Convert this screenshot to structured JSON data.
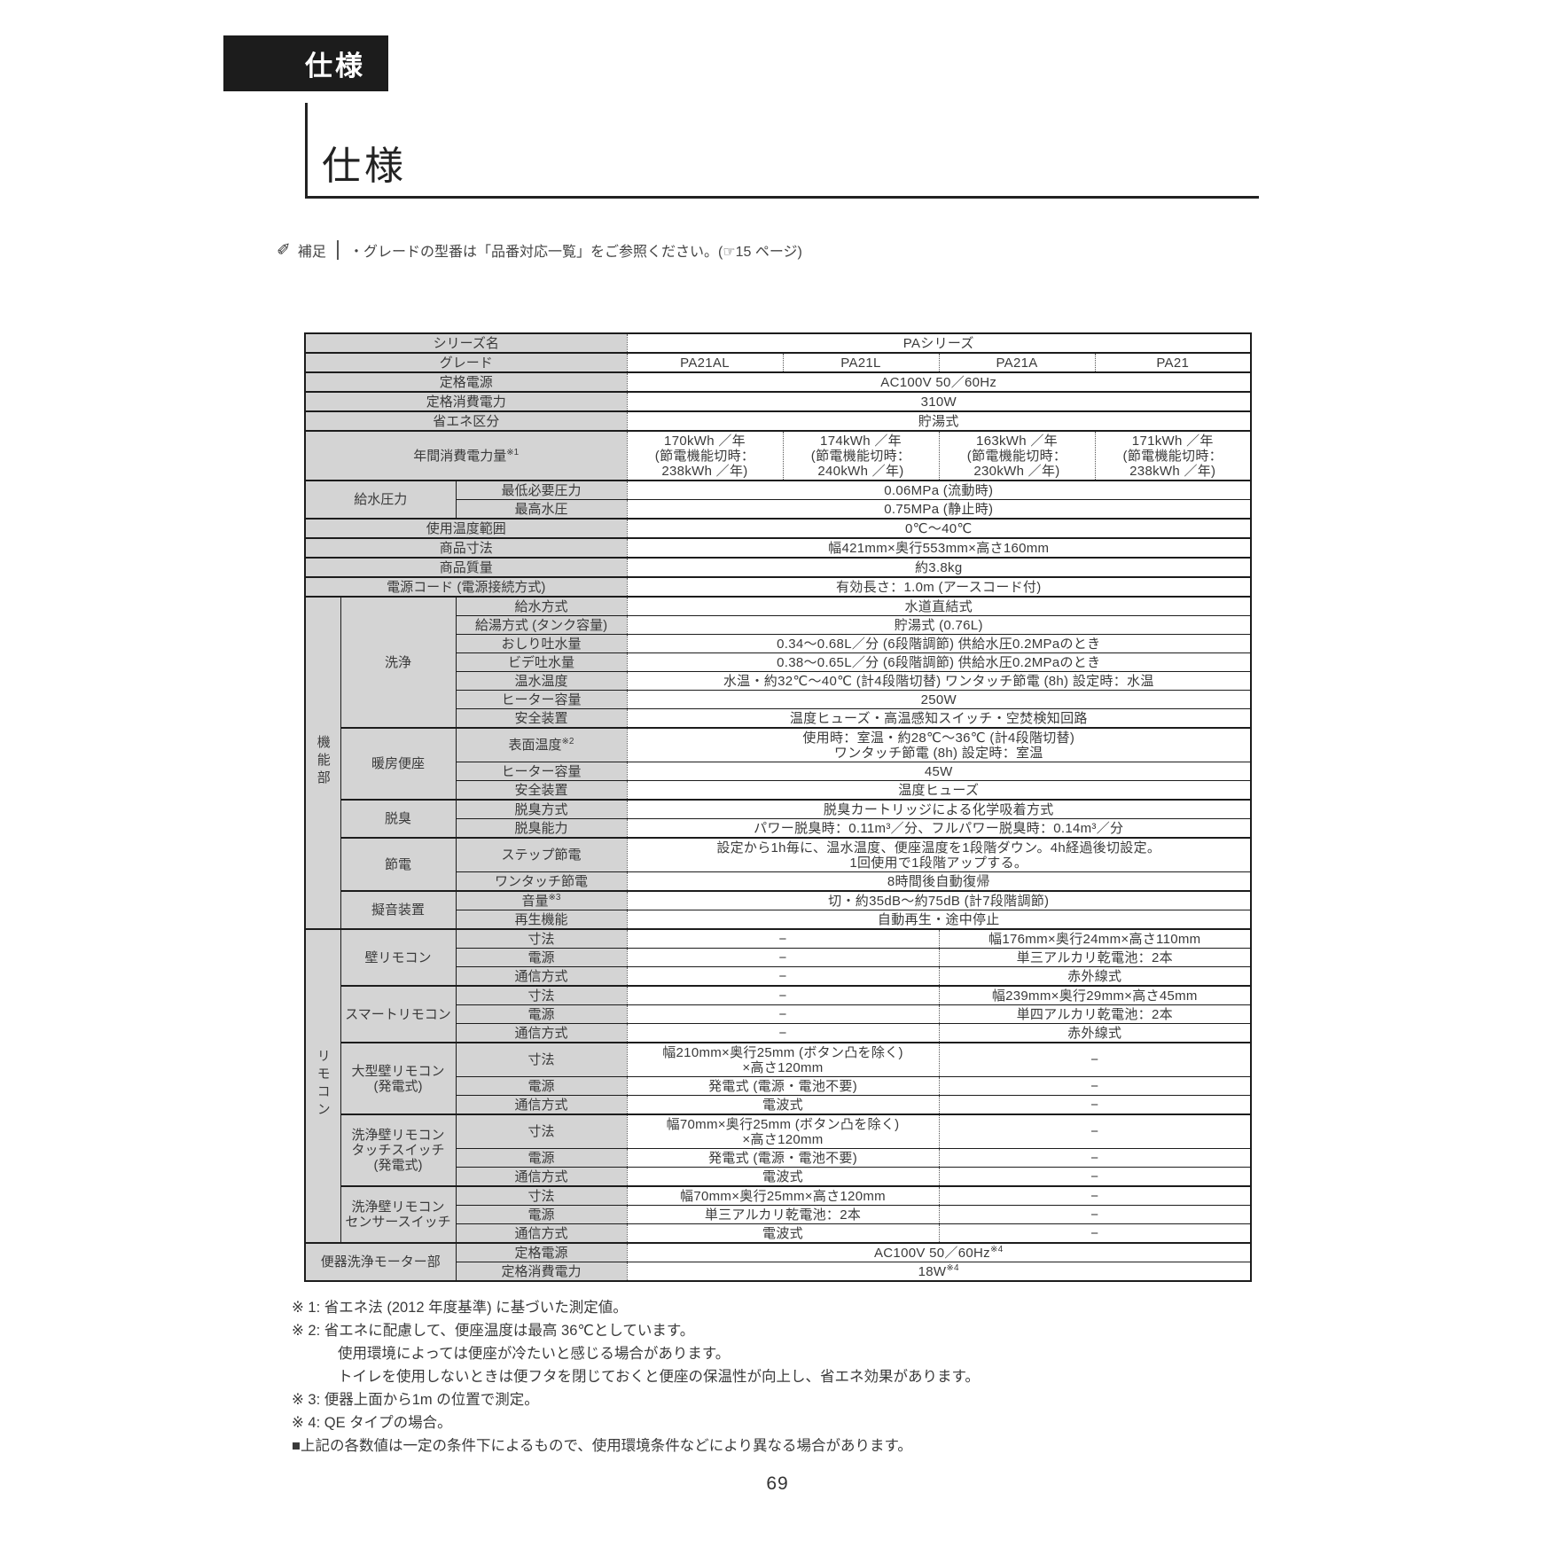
{
  "header": {
    "tab_label": "仕様",
    "section_title": "仕様"
  },
  "note": {
    "icon": "pencil-icon",
    "label": "補足",
    "text": "・グレードの型番は「品番対応一覧」をご参照ください。(☞15 ページ)"
  },
  "colors": {
    "label_bg": "#d4d4d4",
    "border": "#1c1c1c",
    "tab_bg": "#1c1c1c",
    "tab_text": "#ffffff",
    "text": "#3a3a3a"
  },
  "spec_table": {
    "series_name": "PAシリーズ",
    "grades": [
      "PA21AL",
      "PA21L",
      "PA21A",
      "PA21"
    ],
    "rows": [
      {
        "thick": true,
        "cells": [
          {
            "t": "シリーズ名",
            "k": "lbl",
            "c": 3
          },
          {
            "t": "PAシリーズ",
            "k": "val",
            "c": 4
          }
        ]
      },
      {
        "thick": true,
        "cells": [
          {
            "t": "グレード",
            "k": "lbl",
            "c": 3
          },
          {
            "t": "PA21AL",
            "k": "val"
          },
          {
            "t": "PA21L",
            "k": "val"
          },
          {
            "t": "PA21A",
            "k": "val"
          },
          {
            "t": "PA21",
            "k": "val"
          }
        ]
      },
      {
        "thick": true,
        "cells": [
          {
            "t": "定格電源",
            "k": "lbl",
            "c": 3
          },
          {
            "t": "AC100V 50／60Hz",
            "k": "val",
            "c": 4
          }
        ]
      },
      {
        "thick": true,
        "cells": [
          {
            "t": "定格消費電力",
            "k": "lbl",
            "c": 3
          },
          {
            "t": "310W",
            "k": "val",
            "c": 4
          }
        ]
      },
      {
        "thick": true,
        "cells": [
          {
            "t": "省エネ区分",
            "k": "lbl",
            "c": 3
          },
          {
            "t": "貯湯式",
            "k": "val",
            "c": 4
          }
        ]
      },
      {
        "thick": true,
        "cells": [
          {
            "t": "年間消費電力量",
            "sup": "※1",
            "k": "lbl",
            "c": 3
          },
          {
            "t": "170kWh ／年\n(節電機能切時：\n238kWh ／年)",
            "k": "val"
          },
          {
            "t": "174kWh ／年\n(節電機能切時：\n240kWh ／年)",
            "k": "val"
          },
          {
            "t": "163kWh ／年\n(節電機能切時：\n230kWh ／年)",
            "k": "val"
          },
          {
            "t": "171kWh ／年\n(節電機能切時：\n238kWh ／年)",
            "k": "val"
          }
        ]
      },
      {
        "thick": true,
        "cells": [
          {
            "t": "給水圧力",
            "k": "lbl",
            "c": 2,
            "r": 2
          },
          {
            "t": "最低必要圧力",
            "k": "lbl"
          },
          {
            "t": "0.06MPa (流動時)",
            "k": "val",
            "c": 4
          }
        ]
      },
      {
        "cells": [
          {
            "t": "最高水圧",
            "k": "lbl"
          },
          {
            "t": "0.75MPa (静止時)",
            "k": "val",
            "c": 4
          }
        ]
      },
      {
        "thick": true,
        "cells": [
          {
            "t": "使用温度範囲",
            "k": "lbl",
            "c": 3
          },
          {
            "t": "0℃～40℃",
            "k": "val",
            "c": 4
          }
        ]
      },
      {
        "thick": true,
        "cells": [
          {
            "t": "商品寸法",
            "k": "lbl",
            "c": 3
          },
          {
            "t": "幅421mm×奥行553mm×高さ160mm",
            "k": "val",
            "c": 4
          }
        ]
      },
      {
        "thick": true,
        "cells": [
          {
            "t": "商品質量",
            "k": "lbl",
            "c": 3
          },
          {
            "t": "約3.8kg",
            "k": "val",
            "c": 4
          }
        ]
      },
      {
        "thick": true,
        "cells": [
          {
            "t": "電源コード (電源接続方式)",
            "k": "lbl",
            "c": 3
          },
          {
            "t": "有効長さ：1.0m (アースコード付)",
            "k": "val",
            "c": 4
          }
        ]
      },
      {
        "thick": true,
        "cells": [
          {
            "t": "機能部",
            "k": "vlbl",
            "r": 16
          },
          {
            "t": "洗浄",
            "k": "lbl",
            "r": 7
          },
          {
            "t": "給水方式",
            "k": "lbl"
          },
          {
            "t": "水道直結式",
            "k": "val",
            "c": 4
          }
        ]
      },
      {
        "cells": [
          {
            "t": "給湯方式 (タンク容量)",
            "k": "lbl"
          },
          {
            "t": "貯湯式 (0.76L)",
            "k": "val",
            "c": 4
          }
        ]
      },
      {
        "cells": [
          {
            "t": "おしり吐水量",
            "k": "lbl"
          },
          {
            "t": "0.34～0.68L／分 (6段階調節)  供給水圧0.2MPaのとき",
            "k": "val",
            "c": 4
          }
        ]
      },
      {
        "cells": [
          {
            "t": "ビデ吐水量",
            "k": "lbl"
          },
          {
            "t": "0.38～0.65L／分 (6段階調節)  供給水圧0.2MPaのとき",
            "k": "val",
            "c": 4
          }
        ]
      },
      {
        "cells": [
          {
            "t": "温水温度",
            "k": "lbl"
          },
          {
            "t": "水温・約32℃～40℃ (計4段階切替)  ワンタッチ節電 (8h) 設定時：水温",
            "k": "val",
            "c": 4
          }
        ]
      },
      {
        "cells": [
          {
            "t": "ヒーター容量",
            "k": "lbl"
          },
          {
            "t": "250W",
            "k": "val",
            "c": 4
          }
        ]
      },
      {
        "cells": [
          {
            "t": "安全装置",
            "k": "lbl"
          },
          {
            "t": "温度ヒューズ・高温感知スイッチ・空焚検知回路",
            "k": "val",
            "c": 4
          }
        ]
      },
      {
        "thick": true,
        "cells": [
          {
            "t": "暖房便座",
            "k": "lbl",
            "r": 3
          },
          {
            "t": "表面温度",
            "sup": "※2",
            "k": "lbl"
          },
          {
            "t": "使用時：室温・約28℃～36℃ (計4段階切替)\nワンタッチ節電 (8h) 設定時：室温",
            "k": "val",
            "c": 4
          }
        ]
      },
      {
        "cells": [
          {
            "t": "ヒーター容量",
            "k": "lbl"
          },
          {
            "t": "45W",
            "k": "val",
            "c": 4
          }
        ]
      },
      {
        "cells": [
          {
            "t": "安全装置",
            "k": "lbl"
          },
          {
            "t": "温度ヒューズ",
            "k": "val",
            "c": 4
          }
        ]
      },
      {
        "thick": true,
        "cells": [
          {
            "t": "脱臭",
            "k": "lbl",
            "r": 2
          },
          {
            "t": "脱臭方式",
            "k": "lbl"
          },
          {
            "t": "脱臭カートリッジによる化学吸着方式",
            "k": "val",
            "c": 4
          }
        ]
      },
      {
        "cells": [
          {
            "t": "脱臭能力",
            "k": "lbl"
          },
          {
            "t": "パワー脱臭時：0.11m³／分、フルパワー脱臭時：0.14m³／分",
            "k": "val",
            "c": 4
          }
        ]
      },
      {
        "thick": true,
        "cells": [
          {
            "t": "節電",
            "k": "lbl",
            "r": 2
          },
          {
            "t": "ステップ節電",
            "k": "lbl"
          },
          {
            "t": "設定から1h毎に、温水温度、便座温度を1段階ダウン。4h経過後切設定。\n1回使用で1段階アップする。",
            "k": "val",
            "c": 4
          }
        ]
      },
      {
        "cells": [
          {
            "t": "ワンタッチ節電",
            "k": "lbl"
          },
          {
            "t": "8時間後自動復帰",
            "k": "val",
            "c": 4
          }
        ]
      },
      {
        "thick": true,
        "cells": [
          {
            "t": "擬音装置",
            "k": "lbl",
            "r": 2
          },
          {
            "t": "音量",
            "sup": "※3",
            "k": "lbl"
          },
          {
            "t": "切・約35dB～約75dB (計7段階調節)",
            "k": "val",
            "c": 4
          }
        ]
      },
      {
        "cells": [
          {
            "t": "再生機能",
            "k": "lbl"
          },
          {
            "t": "自動再生・途中停止",
            "k": "val",
            "c": 4
          }
        ]
      },
      {
        "thick": true,
        "cells": [
          {
            "t": "リモコン",
            "k": "vlbl",
            "r": 15
          },
          {
            "t": "壁リモコン",
            "k": "lbl",
            "r": 3
          },
          {
            "t": "寸法",
            "k": "lbl"
          },
          {
            "t": "−",
            "k": "val",
            "c": 2
          },
          {
            "t": "幅176mm×奥行24mm×高さ110mm",
            "k": "val",
            "c": 2
          }
        ]
      },
      {
        "cells": [
          {
            "t": "電源",
            "k": "lbl"
          },
          {
            "t": "−",
            "k": "val",
            "c": 2
          },
          {
            "t": "単三アルカリ乾電池：2本",
            "k": "val",
            "c": 2
          }
        ]
      },
      {
        "cells": [
          {
            "t": "通信方式",
            "k": "lbl"
          },
          {
            "t": "−",
            "k": "val",
            "c": 2
          },
          {
            "t": "赤外線式",
            "k": "val",
            "c": 2
          }
        ]
      },
      {
        "thick": true,
        "cells": [
          {
            "t": "スマートリモコン",
            "k": "lbl",
            "r": 3
          },
          {
            "t": "寸法",
            "k": "lbl"
          },
          {
            "t": "−",
            "k": "val",
            "c": 2
          },
          {
            "t": "幅239mm×奥行29mm×高さ45mm",
            "k": "val",
            "c": 2
          }
        ]
      },
      {
        "cells": [
          {
            "t": "電源",
            "k": "lbl"
          },
          {
            "t": "−",
            "k": "val",
            "c": 2
          },
          {
            "t": "単四アルカリ乾電池：2本",
            "k": "val",
            "c": 2
          }
        ]
      },
      {
        "cells": [
          {
            "t": "通信方式",
            "k": "lbl"
          },
          {
            "t": "−",
            "k": "val",
            "c": 2
          },
          {
            "t": "赤外線式",
            "k": "val",
            "c": 2
          }
        ]
      },
      {
        "thick": true,
        "cells": [
          {
            "t": "大型壁リモコン\n(発電式)",
            "k": "lbl",
            "r": 3
          },
          {
            "t": "寸法",
            "k": "lbl"
          },
          {
            "t": "幅210mm×奥行25mm (ボタン凸を除く)\n×高さ120mm",
            "k": "val",
            "c": 2
          },
          {
            "t": "−",
            "k": "val",
            "c": 2
          }
        ]
      },
      {
        "cells": [
          {
            "t": "電源",
            "k": "lbl"
          },
          {
            "t": "発電式 (電源・電池不要)",
            "k": "val",
            "c": 2
          },
          {
            "t": "−",
            "k": "val",
            "c": 2
          }
        ]
      },
      {
        "cells": [
          {
            "t": "通信方式",
            "k": "lbl"
          },
          {
            "t": "電波式",
            "k": "val",
            "c": 2
          },
          {
            "t": "−",
            "k": "val",
            "c": 2
          }
        ]
      },
      {
        "thick": true,
        "cells": [
          {
            "t": "洗浄壁リモコン\nタッチスイッチ\n(発電式)",
            "k": "lbl",
            "r": 3
          },
          {
            "t": "寸法",
            "k": "lbl"
          },
          {
            "t": "幅70mm×奥行25mm (ボタン凸を除く)\n×高さ120mm",
            "k": "val",
            "c": 2
          },
          {
            "t": "−",
            "k": "val",
            "c": 2
          }
        ]
      },
      {
        "cells": [
          {
            "t": "電源",
            "k": "lbl"
          },
          {
            "t": "発電式 (電源・電池不要)",
            "k": "val",
            "c": 2
          },
          {
            "t": "−",
            "k": "val",
            "c": 2
          }
        ]
      },
      {
        "cells": [
          {
            "t": "通信方式",
            "k": "lbl"
          },
          {
            "t": "電波式",
            "k": "val",
            "c": 2
          },
          {
            "t": "−",
            "k": "val",
            "c": 2
          }
        ]
      },
      {
        "thick": true,
        "cells": [
          {
            "t": "洗浄壁リモコン\nセンサースイッチ",
            "k": "lbl",
            "r": 3
          },
          {
            "t": "寸法",
            "k": "lbl"
          },
          {
            "t": "幅70mm×奥行25mm×高さ120mm",
            "k": "val",
            "c": 2
          },
          {
            "t": "−",
            "k": "val",
            "c": 2
          }
        ]
      },
      {
        "cells": [
          {
            "t": "電源",
            "k": "lbl"
          },
          {
            "t": "単三アルカリ乾電池：2本",
            "k": "val",
            "c": 2
          },
          {
            "t": "−",
            "k": "val",
            "c": 2
          }
        ]
      },
      {
        "cells": [
          {
            "t": "通信方式",
            "k": "lbl"
          },
          {
            "t": "電波式",
            "k": "val",
            "c": 2
          },
          {
            "t": "−",
            "k": "val",
            "c": 2
          }
        ]
      },
      {
        "thick": true,
        "cells": [
          {
            "t": "便器洗浄モーター部",
            "k": "lbl",
            "c": 2,
            "r": 2
          },
          {
            "t": "定格電源",
            "k": "lbl"
          },
          {
            "t": "AC100V 50／60Hz",
            "sup": "※4",
            "k": "val",
            "c": 4
          }
        ]
      },
      {
        "cells": [
          {
            "t": "定格消費電力",
            "k": "lbl"
          },
          {
            "t": "18W",
            "sup": "※4",
            "k": "val",
            "c": 4
          }
        ]
      }
    ]
  },
  "footnotes": [
    {
      "text": "※ 1:  省エネ法 (2012 年度基準)  に基づいた測定値。",
      "indent": false
    },
    {
      "text": "※ 2:  省エネに配慮して、便座温度は最高 36℃としています。",
      "indent": false
    },
    {
      "text": "使用環境によっては便座が冷たいと感じる場合があります。",
      "indent": true
    },
    {
      "text": "トイレを使用しないときは便フタを閉じておくと便座の保温性が向上し、省エネ効果があります。",
      "indent": true
    },
    {
      "text": "※ 3:  便器上面から1m の位置で測定。",
      "indent": false
    },
    {
      "text": "※ 4:  QE タイプの場合。",
      "indent": false
    },
    {
      "text": "■上記の各数値は一定の条件下によるもので、使用環境条件などにより異なる場合があります。",
      "indent": false
    }
  ],
  "page_number": "69"
}
